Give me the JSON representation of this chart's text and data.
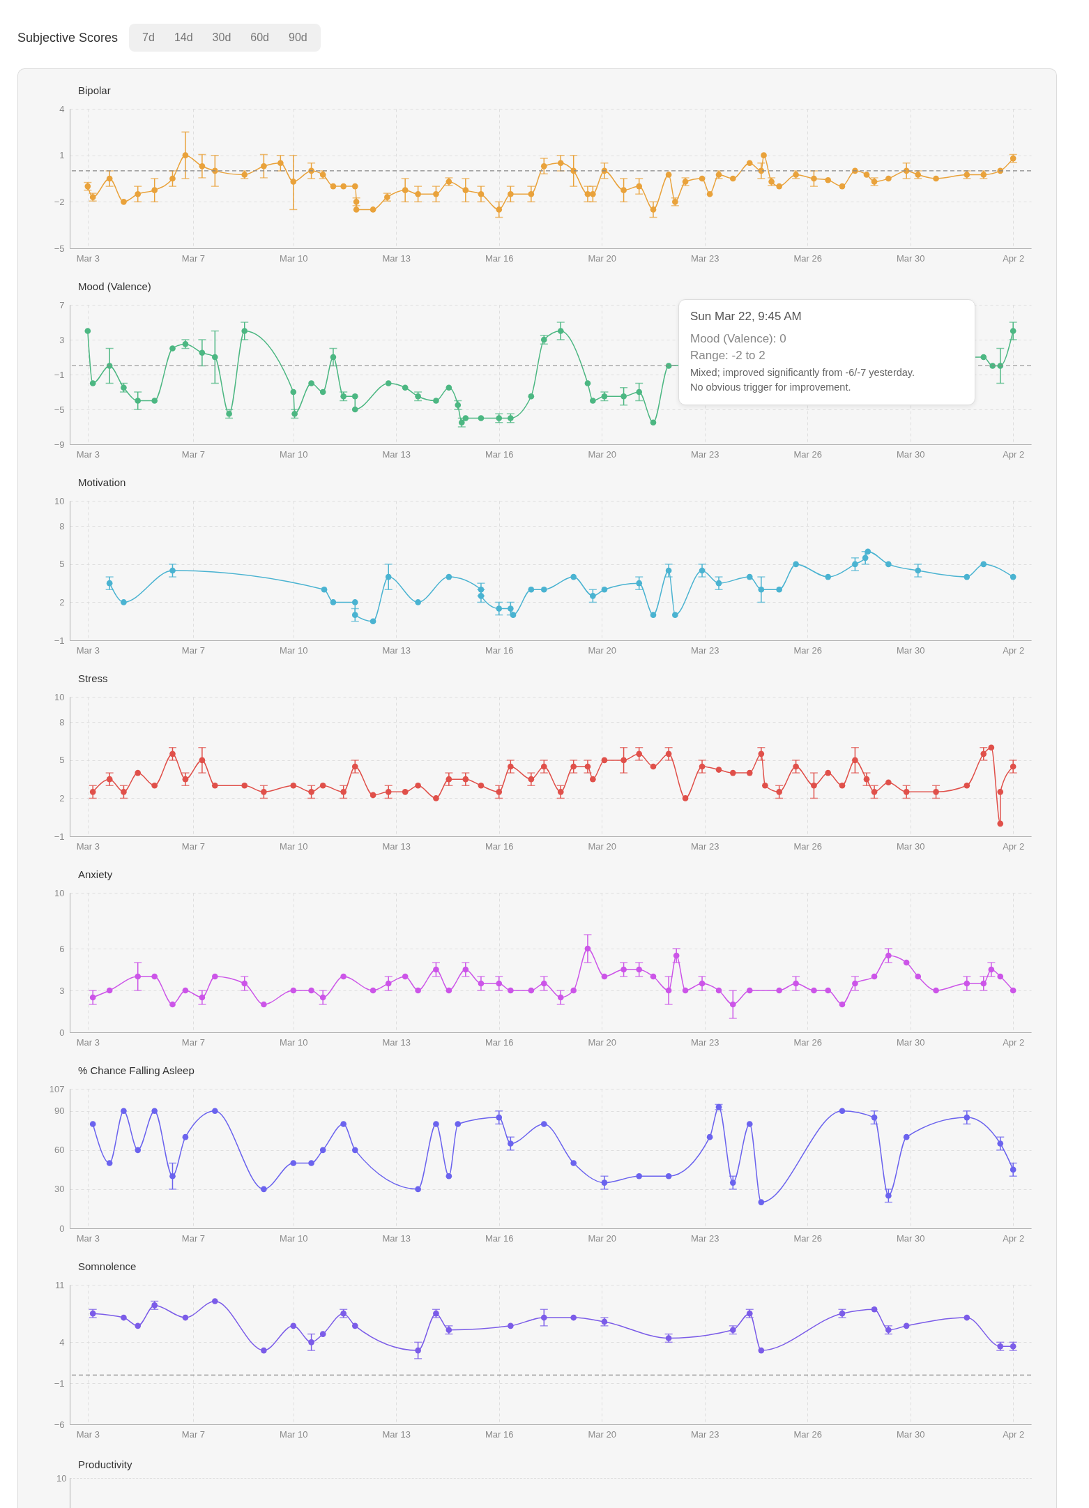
{
  "chart_data": [
    {
      "type": "other",
      "title": "Subjective Scores",
      "annotations": [
        "7d",
        "14d",
        "30d",
        "60d",
        "90d"
      ]
    },
    {
      "type": "line",
      "title": "Bipolar",
      "color": "#e9a23b",
      "marker": "circle",
      "grid": true,
      "x": [
        "--03-03T14:00",
        "--03-03T18:00",
        "--03-04T07:00",
        "--03-04T18:00",
        "--03-05T05:00",
        "--03-05T18:00",
        "--03-06T08:00",
        "--03-06T18:00",
        "--03-07T07:00",
        "--03-07T17:00",
        "--03-08T16:00",
        "--03-09T07:00",
        "--03-09T20:00",
        "--03-10T06:00",
        "--03-10T20:00",
        "--03-11T05:00",
        "--03-11T13:00",
        "--03-11T21:00",
        "--03-12T06:00",
        "--03-12T07:00",
        "--03-12T07:00",
        "--03-12T20:00",
        "--03-13T07:00",
        "--03-13T21:00",
        "--03-14T07:00",
        "--03-14T21:00",
        "--03-15T07:00",
        "--03-15T20:00",
        "--03-16T08:00",
        "--03-16T22:00",
        "--03-17T07:00",
        "--03-17T23:00",
        "--03-18T09:00",
        "--03-18T22:00",
        "--03-19T08:00",
        "--03-19T19:00",
        "--03-19T23:00",
        "--03-20T08:00",
        "--03-20T23:00",
        "--03-21T11:00",
        "--03-21T22:00",
        "--03-22T10:00",
        "--03-22T15:00",
        "--03-22T23:00",
        "--03-23T12:00",
        "--03-23T18:00",
        "--03-24T01:00",
        "--03-24T12:00",
        "--03-25T01:00",
        "--03-25T10:00",
        "--03-25T12:00",
        "--03-25T18:00",
        "--03-26T00:00",
        "--03-26T13:00",
        "--03-27T03:00",
        "--03-27T14:00",
        "--03-28T01:00",
        "--03-28T11:00",
        "--03-28T20:00",
        "--03-29T02:00",
        "--03-29T13:00",
        "--03-30T03:00",
        "--03-30T12:00",
        "--03-31T02:00",
        "--04-01T02:00",
        "--04-01T15:00",
        "--04-02T04:00",
        "--04-02T14:00"
      ],
      "values": [
        -1,
        -1.7,
        -0.5,
        -2,
        -1.5,
        -1.25,
        -0.5,
        1,
        0.3,
        0,
        -0.25,
        0.3,
        0.5,
        -0.7,
        0,
        -0.25,
        -1,
        -1,
        -1,
        -2,
        -2.5,
        -2.5,
        -1.7,
        -1.25,
        -1.5,
        -1.5,
        -0.7,
        -1.25,
        -1.5,
        -2.5,
        -1.5,
        -1.5,
        0.3,
        0.5,
        0,
        -1.5,
        -1.5,
        0,
        -1.25,
        -1,
        -2.5,
        -0.25,
        -2,
        -0.7,
        -0.5,
        -1.5,
        -0.25,
        -0.5,
        0.5,
        0,
        1,
        -0.7,
        -1,
        -0.25,
        -0.5,
        -0.6,
        -1,
        0,
        -0.25,
        -0.7,
        -0.5,
        0,
        -0.25,
        -0.5,
        -0.25,
        -0.25,
        0,
        0.8
      ],
      "errors": [
        0.25,
        0.25,
        0.5,
        null,
        0.5,
        0.75,
        0.5,
        1.5,
        0.75,
        1,
        0.25,
        0.75,
        0.5,
        [
          -2.5,
          1
        ],
        0.5,
        0.25,
        null,
        null,
        null,
        0.25,
        null,
        null,
        0.25,
        0.75,
        0.5,
        0.5,
        0.25,
        0.75,
        0.5,
        0.5,
        0.5,
        0.5,
        0.5,
        0.5,
        1,
        0.5,
        0.5,
        0.5,
        0.75,
        0.5,
        0.5,
        null,
        0.25,
        0.25,
        null,
        null,
        0.25,
        null,
        null,
        0.5,
        null,
        0.25,
        null,
        0.25,
        0.5,
        null,
        null,
        null,
        null,
        0.25,
        null,
        0.5,
        0.25,
        null,
        0.25,
        0.25,
        null,
        0.25
      ],
      "xlim": [
        "--03-03T00:00",
        "--04-03T04:00"
      ],
      "xticks": [
        {
          "value": "--03-03T14:00",
          "label": "Mar 3"
        },
        {
          "value": "--03-07T00:00",
          "label": "Mar 7"
        },
        {
          "value": "--03-10T06:00",
          "label": "Mar 10"
        },
        {
          "value": "--03-13T14:00",
          "label": "Mar 13"
        },
        {
          "value": "--03-16T22:00",
          "label": "Mar 16"
        },
        {
          "value": "--03-20T06:00",
          "label": "Mar 20"
        },
        {
          "value": "--03-23T14:00",
          "label": "Mar 23"
        },
        {
          "value": "--03-26T22:00",
          "label": "Mar 26"
        },
        {
          "value": "--03-30T06:00",
          "label": "Mar 30"
        },
        {
          "value": "--04-02T14:00",
          "label": "Apr 2"
        }
      ],
      "ylim": [
        -5,
        4
      ],
      "yticks": [
        -5,
        -2,
        1,
        4
      ],
      "ref_lines": [
        {
          "axis": "y",
          "value": 0,
          "line_style": "dashed",
          "color": "#888888"
        }
      ]
    },
    {
      "type": "line",
      "title": "Mood (Valence)",
      "color": "#4cb782",
      "marker": "circle",
      "grid": true,
      "x": [
        "--03-03T14:00",
        "--03-03T18:00",
        "--03-04T07:00",
        "--03-04T18:00",
        "--03-05T05:00",
        "--03-05T18:00",
        "--03-06T08:00",
        "--03-06T18:00",
        "--03-07T07:00",
        "--03-07T17:00",
        "--03-08T04:00",
        "--03-08T16:00",
        "--03-10T06:00",
        "--03-10T07:00",
        "--03-10T20:00",
        "--03-11T05:00",
        "--03-11T13:00",
        "--03-11T21:00",
        "--03-12T06:00",
        "--03-12T06:00",
        "--03-13T08:00",
        "--03-13T21:00",
        "--03-14T07:00",
        "--03-14T21:00",
        "--03-15T07:00",
        "--03-15T14:00",
        "--03-15T17:00",
        "--03-15T20:00",
        "--03-16T08:00",
        "--03-16T22:00",
        "--03-17T07:00",
        "--03-17T23:00",
        "--03-18T09:00",
        "--03-18T22:00",
        "--03-19T19:00",
        "--03-19T23:00",
        "--03-20T08:00",
        "--03-20T23:00",
        "--03-21T11:00",
        "--03-21T22:00",
        "--03-22T10:00",
        "--04-01T15:00",
        "--04-01T22:00",
        "--04-02T04:00",
        "--04-02T14:00"
      ],
      "values": [
        4,
        -2,
        0,
        -2.5,
        -4,
        -4,
        2,
        2.5,
        1.5,
        1,
        -5.5,
        4,
        -3,
        -5.5,
        -2,
        -3,
        1,
        -3.5,
        -3.5,
        -5,
        -2,
        -2.5,
        -3.5,
        -4,
        -2.5,
        -4.5,
        -6.5,
        -6,
        -6,
        -6,
        -6,
        -3.5,
        3,
        4,
        -2,
        -4,
        -3.5,
        -3.5,
        -3,
        -6.5,
        0,
        1,
        0,
        0,
        4
      ],
      "errors": [
        null,
        null,
        2,
        0.5,
        1,
        null,
        null,
        0.5,
        1.5,
        3,
        0.5,
        1,
        null,
        0.5,
        null,
        null,
        1,
        0.5,
        null,
        null,
        null,
        null,
        0.5,
        null,
        null,
        0.5,
        0.5,
        null,
        null,
        0.5,
        0.5,
        null,
        0.5,
        1,
        null,
        null,
        0.5,
        1,
        1,
        null,
        null,
        null,
        null,
        2,
        1
      ],
      "xlim": [
        "--03-03T00:00",
        "--04-03T04:00"
      ],
      "xticks": [
        {
          "value": "--03-03T14:00",
          "label": "Mar 3"
        },
        {
          "value": "--03-07T00:00",
          "label": "Mar 7"
        },
        {
          "value": "--03-10T06:00",
          "label": "Mar 10"
        },
        {
          "value": "--03-13T14:00",
          "label": "Mar 13"
        },
        {
          "value": "--03-16T22:00",
          "label": "Mar 16"
        },
        {
          "value": "--03-20T06:00",
          "label": "Mar 20"
        },
        {
          "value": "--03-23T14:00",
          "label": "Mar 23"
        },
        {
          "value": "--03-26T22:00",
          "label": "Mar 26"
        },
        {
          "value": "--03-30T06:00",
          "label": "Mar 30"
        },
        {
          "value": "--04-02T14:00",
          "label": "Apr 2"
        }
      ],
      "ylim": [
        -9,
        7
      ],
      "yticks": [
        -9,
        -5,
        -1,
        3,
        7
      ],
      "ref_lines": [
        {
          "axis": "y",
          "value": 0,
          "line_style": "dashed",
          "color": "#888888"
        }
      ],
      "annotations": [
        "Sun Mar 22, 9:45 AM",
        "Mood (Valence): 0",
        "Range: -2 to 2",
        "Mixed; improved significantly from -6/-7 yesterday.",
        "No obvious trigger for improvement."
      ]
    },
    {
      "type": "line",
      "title": "Motivation",
      "color": "#4ab3d1",
      "marker": "circle",
      "grid": true,
      "x": [
        "--03-04T07:00",
        "--03-04T18:00",
        "--03-06T08:00",
        "--03-11T06:00",
        "--03-11T13:00",
        "--03-12T06:00",
        "--03-12T06:00",
        "--03-12T20:00",
        "--03-13T08:00",
        "--03-14T07:00",
        "--03-15T07:00",
        "--03-16T08:00",
        "--03-16T08:00",
        "--03-16T22:00",
        "--03-17T07:00",
        "--03-17T09:00",
        "--03-17T23:00",
        "--03-18T09:00",
        "--03-19T08:00",
        "--03-19T23:00",
        "--03-20T08:00",
        "--03-21T11:00",
        "--03-21T22:00",
        "--03-22T10:00",
        "--03-22T15:00",
        "--03-23T12:00",
        "--03-24T01:00",
        "--03-25T01:00",
        "--03-25T10:00",
        "--03-26T00:00",
        "--03-26T13:00",
        "--03-27T14:00",
        "--03-28T11:00",
        "--03-28T19:00",
        "--03-28T21:00",
        "--03-29T13:00",
        "--03-30T12:00",
        "--04-01T02:00",
        "--04-01T15:00",
        "--04-02T14:00"
      ],
      "values": [
        3.5,
        2,
        4.5,
        3,
        2,
        2,
        1,
        0.5,
        4,
        2,
        4,
        3,
        2.5,
        1.5,
        1.5,
        1,
        3,
        3,
        4,
        2.5,
        3,
        3.5,
        1,
        4.5,
        1,
        4.5,
        3.5,
        4,
        3,
        3,
        5,
        4,
        5,
        5.5,
        6,
        5,
        4.5,
        4,
        5,
        4
      ],
      "errors": [
        0.5,
        null,
        0.5,
        null,
        null,
        null,
        0.5,
        null,
        1,
        null,
        null,
        0.5,
        0.5,
        0.5,
        0.5,
        null,
        null,
        null,
        null,
        0.5,
        null,
        0.5,
        null,
        0.5,
        null,
        0.5,
        0.5,
        null,
        1,
        null,
        null,
        null,
        0.5,
        0.5,
        null,
        null,
        0.5,
        null,
        null,
        null
      ],
      "xlim": [
        "--03-03T00:00",
        "--04-03T04:00"
      ],
      "xticks": [
        {
          "value": "--03-03T14:00",
          "label": "Mar 3"
        },
        {
          "value": "--03-07T00:00",
          "label": "Mar 7"
        },
        {
          "value": "--03-10T06:00",
          "label": "Mar 10"
        },
        {
          "value": "--03-13T14:00",
          "label": "Mar 13"
        },
        {
          "value": "--03-16T22:00",
          "label": "Mar 16"
        },
        {
          "value": "--03-20T06:00",
          "label": "Mar 20"
        },
        {
          "value": "--03-23T14:00",
          "label": "Mar 23"
        },
        {
          "value": "--03-26T22:00",
          "label": "Mar 26"
        },
        {
          "value": "--03-30T06:00",
          "label": "Mar 30"
        },
        {
          "value": "--04-02T14:00",
          "label": "Apr 2"
        }
      ],
      "ylim": [
        -1,
        10
      ],
      "yticks": [
        -1,
        2,
        5,
        8,
        10
      ]
    },
    {
      "type": "line",
      "title": "Stress",
      "color": "#e0504a",
      "marker": "circle",
      "grid": true,
      "x": [
        "--03-03T18:00",
        "--03-04T07:00",
        "--03-04T18:00",
        "--03-05T05:00",
        "--03-05T18:00",
        "--03-06T08:00",
        "--03-06T18:00",
        "--03-07T07:00",
        "--03-07T17:00",
        "--03-08T16:00",
        "--03-09T07:00",
        "--03-10T06:00",
        "--03-10T20:00",
        "--03-11T05:00",
        "--03-11T21:00",
        "--03-12T06:00",
        "--03-12T20:00",
        "--03-13T08:00",
        "--03-13T21:00",
        "--03-14T07:00",
        "--03-14T21:00",
        "--03-15T07:00",
        "--03-15T20:00",
        "--03-16T08:00",
        "--03-16T22:00",
        "--03-17T07:00",
        "--03-17T23:00",
        "--03-18T09:00",
        "--03-18T22:00",
        "--03-19T08:00",
        "--03-19T19:00",
        "--03-19T23:00",
        "--03-20T08:00",
        "--03-20T23:00",
        "--03-21T11:00",
        "--03-21T22:00",
        "--03-22T10:00",
        "--03-22T23:00",
        "--03-23T12:00",
        "--03-24T01:00",
        "--03-24T12:00",
        "--03-25T01:00",
        "--03-25T10:00",
        "--03-25T13:00",
        "--03-26T00:00",
        "--03-26T13:00",
        "--03-27T03:00",
        "--03-27T14:00",
        "--03-28T01:00",
        "--03-28T11:00",
        "--03-28T20:00",
        "--03-29T02:00",
        "--03-29T13:00",
        "--03-30T03:00",
        "--03-31T02:00",
        "--04-01T02:00",
        "--04-01T15:00",
        "--04-01T21:00",
        "--04-02T04:00",
        "--04-02T04:00",
        "--04-02T14:00"
      ],
      "values": [
        2.5,
        3.5,
        2.5,
        4,
        3,
        5.5,
        3.5,
        5,
        3,
        3,
        2.5,
        3,
        2.5,
        3,
        2.5,
        4.5,
        2.25,
        2.5,
        2.5,
        3,
        2,
        3.5,
        3.5,
        3,
        2.5,
        4.5,
        3.5,
        4.5,
        2.5,
        4.5,
        4.5,
        3.5,
        5,
        5,
        5.5,
        4.5,
        5.5,
        2,
        4.5,
        4.25,
        4,
        4,
        5.5,
        3,
        2.5,
        4.5,
        3,
        4,
        3,
        5,
        3.5,
        2.5,
        3.25,
        2.5,
        2.5,
        3,
        5.5,
        6,
        0,
        2.5,
        4.5
      ],
      "errors": [
        0.5,
        0.5,
        0.5,
        null,
        null,
        0.5,
        0.5,
        1,
        null,
        null,
        0.5,
        null,
        0.5,
        null,
        0.5,
        0.5,
        null,
        0.5,
        null,
        null,
        null,
        0.5,
        0.5,
        null,
        0.5,
        0.5,
        0.5,
        0.5,
        0.5,
        0.5,
        0.5,
        null,
        null,
        1,
        0.5,
        null,
        0.5,
        null,
        0.5,
        null,
        null,
        null,
        0.5,
        null,
        0.5,
        0.5,
        1,
        null,
        null,
        1,
        0.5,
        0.5,
        null,
        0.5,
        0.5,
        null,
        0.5,
        null,
        null,
        null,
        0.5
      ],
      "xlim": [
        "--03-03T00:00",
        "--04-03T04:00"
      ],
      "xticks": [
        {
          "value": "--03-03T14:00",
          "label": "Mar 3"
        },
        {
          "value": "--03-07T00:00",
          "label": "Mar 7"
        },
        {
          "value": "--03-10T06:00",
          "label": "Mar 10"
        },
        {
          "value": "--03-13T14:00",
          "label": "Mar 13"
        },
        {
          "value": "--03-16T22:00",
          "label": "Mar 16"
        },
        {
          "value": "--03-20T06:00",
          "label": "Mar 20"
        },
        {
          "value": "--03-23T14:00",
          "label": "Mar 23"
        },
        {
          "value": "--03-26T22:00",
          "label": "Mar 26"
        },
        {
          "value": "--03-30T06:00",
          "label": "Mar 30"
        },
        {
          "value": "--04-02T14:00",
          "label": "Apr 2"
        }
      ],
      "ylim": [
        -1,
        10
      ],
      "yticks": [
        -1,
        2,
        5,
        8,
        10
      ]
    },
    {
      "type": "line",
      "title": "Anxiety",
      "color": "#cc55e8",
      "marker": "circle",
      "grid": true,
      "x": [
        "--03-03T18:00",
        "--03-04T07:00",
        "--03-05T05:00",
        "--03-05T18:00",
        "--03-06T08:00",
        "--03-06T18:00",
        "--03-07T07:00",
        "--03-07T17:00",
        "--03-08T16:00",
        "--03-09T07:00",
        "--03-10T06:00",
        "--03-10T20:00",
        "--03-11T05:00",
        "--03-11T21:00",
        "--03-12T20:00",
        "--03-13T08:00",
        "--03-13T21:00",
        "--03-14T07:00",
        "--03-14T21:00",
        "--03-15T07:00",
        "--03-15T20:00",
        "--03-16T08:00",
        "--03-16T22:00",
        "--03-17T07:00",
        "--03-17T23:00",
        "--03-18T09:00",
        "--03-18T22:00",
        "--03-19T08:00",
        "--03-19T19:00",
        "--03-20T08:00",
        "--03-20T23:00",
        "--03-21T11:00",
        "--03-21T22:00",
        "--03-22T10:00",
        "--03-22T16:00",
        "--03-22T23:00",
        "--03-23T12:00",
        "--03-24T01:00",
        "--03-24T12:00",
        "--03-25T01:00",
        "--03-26T00:00",
        "--03-26T13:00",
        "--03-27T03:00",
        "--03-27T14:00",
        "--03-28T01:00",
        "--03-28T11:00",
        "--03-29T02:00",
        "--03-29T13:00",
        "--03-30T03:00",
        "--03-30T12:00",
        "--03-31T02:00",
        "--04-01T02:00",
        "--04-01T15:00",
        "--04-01T21:00",
        "--04-02T04:00",
        "--04-02T14:00"
      ],
      "values": [
        2.5,
        3,
        4,
        4,
        2,
        3,
        2.5,
        4,
        3.5,
        2,
        3,
        3,
        2.5,
        4,
        3,
        3.5,
        4,
        3,
        4.5,
        3,
        4.5,
        3.5,
        3.5,
        3,
        3,
        3.5,
        2.5,
        3,
        6,
        4,
        4.5,
        4.5,
        4,
        3,
        5.5,
        3,
        3.5,
        3,
        2,
        3,
        3,
        3.5,
        3,
        3,
        2,
        3.5,
        4,
        5.5,
        5,
        4,
        3,
        3.5,
        3.5,
        4.5,
        4,
        3
      ],
      "errors": [
        0.5,
        null,
        1,
        null,
        null,
        null,
        0.5,
        null,
        0.5,
        null,
        null,
        null,
        0.5,
        null,
        null,
        0.5,
        null,
        null,
        0.5,
        null,
        0.5,
        0.5,
        0.5,
        null,
        null,
        0.5,
        0.5,
        null,
        1,
        null,
        0.5,
        0.5,
        null,
        1,
        0.5,
        null,
        0.5,
        null,
        1,
        null,
        null,
        0.5,
        null,
        null,
        null,
        0.5,
        null,
        0.5,
        null,
        null,
        null,
        0.5,
        0.5,
        0.5,
        null,
        null
      ],
      "xlim": [
        "--03-03T00:00",
        "--04-03T04:00"
      ],
      "xticks": [
        {
          "value": "--03-03T14:00",
          "label": "Mar 3"
        },
        {
          "value": "--03-07T00:00",
          "label": "Mar 7"
        },
        {
          "value": "--03-10T06:00",
          "label": "Mar 10"
        },
        {
          "value": "--03-13T14:00",
          "label": "Mar 13"
        },
        {
          "value": "--03-16T22:00",
          "label": "Mar 16"
        },
        {
          "value": "--03-20T06:00",
          "label": "Mar 20"
        },
        {
          "value": "--03-23T14:00",
          "label": "Mar 23"
        },
        {
          "value": "--03-26T22:00",
          "label": "Mar 26"
        },
        {
          "value": "--03-30T06:00",
          "label": "Mar 30"
        },
        {
          "value": "--04-02T14:00",
          "label": "Apr 2"
        }
      ],
      "ylim": [
        0,
        10
      ],
      "yticks": [
        0,
        3,
        6,
        10
      ]
    },
    {
      "type": "line",
      "title": "% Chance Falling Asleep",
      "color": "#6b63ee",
      "marker": "circle",
      "grid": true,
      "x": [
        "--03-03T18:00",
        "--03-04T07:00",
        "--03-04T18:00",
        "--03-05T05:00",
        "--03-05T18:00",
        "--03-06T08:00",
        "--03-06T18:00",
        "--03-07T17:00",
        "--03-09T07:00",
        "--03-10T06:00",
        "--03-10T20:00",
        "--03-11T05:00",
        "--03-11T21:00",
        "--03-12T06:00",
        "--03-14T07:00",
        "--03-14T21:00",
        "--03-15T07:00",
        "--03-15T14:00",
        "--03-16T22:00",
        "--03-17T07:00",
        "--03-18T09:00",
        "--03-19T08:00",
        "--03-20T08:00",
        "--03-21T11:00",
        "--03-22T10:00",
        "--03-23T18:00",
        "--03-24T01:00",
        "--03-24T12:00",
        "--03-25T01:00",
        "--03-25T10:00",
        "--03-28T01:00",
        "--03-29T02:00",
        "--03-29T13:00",
        "--03-30T03:00",
        "--04-01T02:00",
        "--04-02T04:00",
        "--04-02T14:00"
      ],
      "values": [
        80,
        50,
        90,
        60,
        90,
        40,
        70,
        90,
        30,
        50,
        50,
        60,
        80,
        60,
        30,
        80,
        40,
        80,
        85,
        65,
        80,
        50,
        35,
        40,
        40,
        70,
        93,
        35,
        80,
        20,
        90,
        85,
        25,
        70,
        85,
        65,
        45
      ],
      "errors": [
        null,
        null,
        null,
        null,
        null,
        10,
        null,
        null,
        null,
        null,
        null,
        null,
        null,
        null,
        null,
        null,
        null,
        null,
        5,
        5,
        null,
        null,
        5,
        null,
        null,
        null,
        2,
        5,
        null,
        null,
        null,
        5,
        5,
        null,
        5,
        5,
        5
      ],
      "xlim": [
        "--03-03T00:00",
        "--04-03T04:00"
      ],
      "xticks": [
        {
          "value": "--03-03T14:00",
          "label": "Mar 3"
        },
        {
          "value": "--03-07T00:00",
          "label": "Mar 7"
        },
        {
          "value": "--03-10T06:00",
          "label": "Mar 10"
        },
        {
          "value": "--03-13T14:00",
          "label": "Mar 13"
        },
        {
          "value": "--03-16T22:00",
          "label": "Mar 16"
        },
        {
          "value": "--03-20T06:00",
          "label": "Mar 20"
        },
        {
          "value": "--03-23T14:00",
          "label": "Mar 23"
        },
        {
          "value": "--03-26T22:00",
          "label": "Mar 26"
        },
        {
          "value": "--03-30T06:00",
          "label": "Mar 30"
        },
        {
          "value": "--04-02T14:00",
          "label": "Apr 2"
        }
      ],
      "ylim": [
        0,
        107
      ],
      "yticks": [
        0,
        30,
        60,
        90,
        107
      ]
    },
    {
      "type": "line",
      "title": "Somnolence",
      "color": "#7b5ce8",
      "marker": "circle",
      "grid": true,
      "x": [
        "--03-03T18:00",
        "--03-04T18:00",
        "--03-05T05:00",
        "--03-05T18:00",
        "--03-06T18:00",
        "--03-07T17:00",
        "--03-09T07:00",
        "--03-10T06:00",
        "--03-10T20:00",
        "--03-11T05:00",
        "--03-11T21:00",
        "--03-12T06:00",
        "--03-14T07:00",
        "--03-14T21:00",
        "--03-15T07:00",
        "--03-17T07:00",
        "--03-18T09:00",
        "--03-19T08:00",
        "--03-20T08:00",
        "--03-22T10:00",
        "--03-24T12:00",
        "--03-25T01:00",
        "--03-25T10:00",
        "--03-28T01:00",
        "--03-29T02:00",
        "--03-29T13:00",
        "--03-30T03:00",
        "--04-01T02:00",
        "--04-02T04:00",
        "--04-02T14:00"
      ],
      "values": [
        7.5,
        7,
        6,
        8.5,
        7,
        9,
        3,
        6,
        4,
        5,
        7.5,
        6,
        3,
        7.5,
        5.5,
        6,
        7,
        7,
        6.5,
        4.5,
        5.5,
        7.5,
        3,
        7.5,
        8,
        5.5,
        6,
        7,
        3.5,
        3.5
      ],
      "errors": [
        0.5,
        null,
        null,
        0.5,
        null,
        null,
        null,
        null,
        1,
        null,
        0.5,
        null,
        1,
        0.5,
        0.5,
        null,
        1,
        null,
        0.5,
        0.5,
        0.5,
        0.5,
        null,
        0.5,
        null,
        0.5,
        null,
        null,
        0.5,
        0.5
      ],
      "xlim": [
        "--03-03T00:00",
        "--04-03T04:00"
      ],
      "xticks": [
        {
          "value": "--03-03T14:00",
          "label": "Mar 3"
        },
        {
          "value": "--03-07T00:00",
          "label": "Mar 7"
        },
        {
          "value": "--03-10T06:00",
          "label": "Mar 10"
        },
        {
          "value": "--03-13T14:00",
          "label": "Mar 13"
        },
        {
          "value": "--03-16T22:00",
          "label": "Mar 16"
        },
        {
          "value": "--03-20T06:00",
          "label": "Mar 20"
        },
        {
          "value": "--03-23T14:00",
          "label": "Mar 23"
        },
        {
          "value": "--03-26T22:00",
          "label": "Mar 26"
        },
        {
          "value": "--03-30T06:00",
          "label": "Mar 30"
        },
        {
          "value": "--04-02T14:00",
          "label": "Apr 2"
        }
      ],
      "ylim": [
        -6,
        11
      ],
      "yticks": [
        -6,
        -1,
        4,
        11
      ],
      "ref_lines": [
        {
          "axis": "y",
          "value": 0,
          "line_style": "dashed",
          "color": "#888888"
        }
      ]
    },
    {
      "type": "other",
      "title": "Productivity",
      "annotations": [
        "10"
      ]
    }
  ]
}
